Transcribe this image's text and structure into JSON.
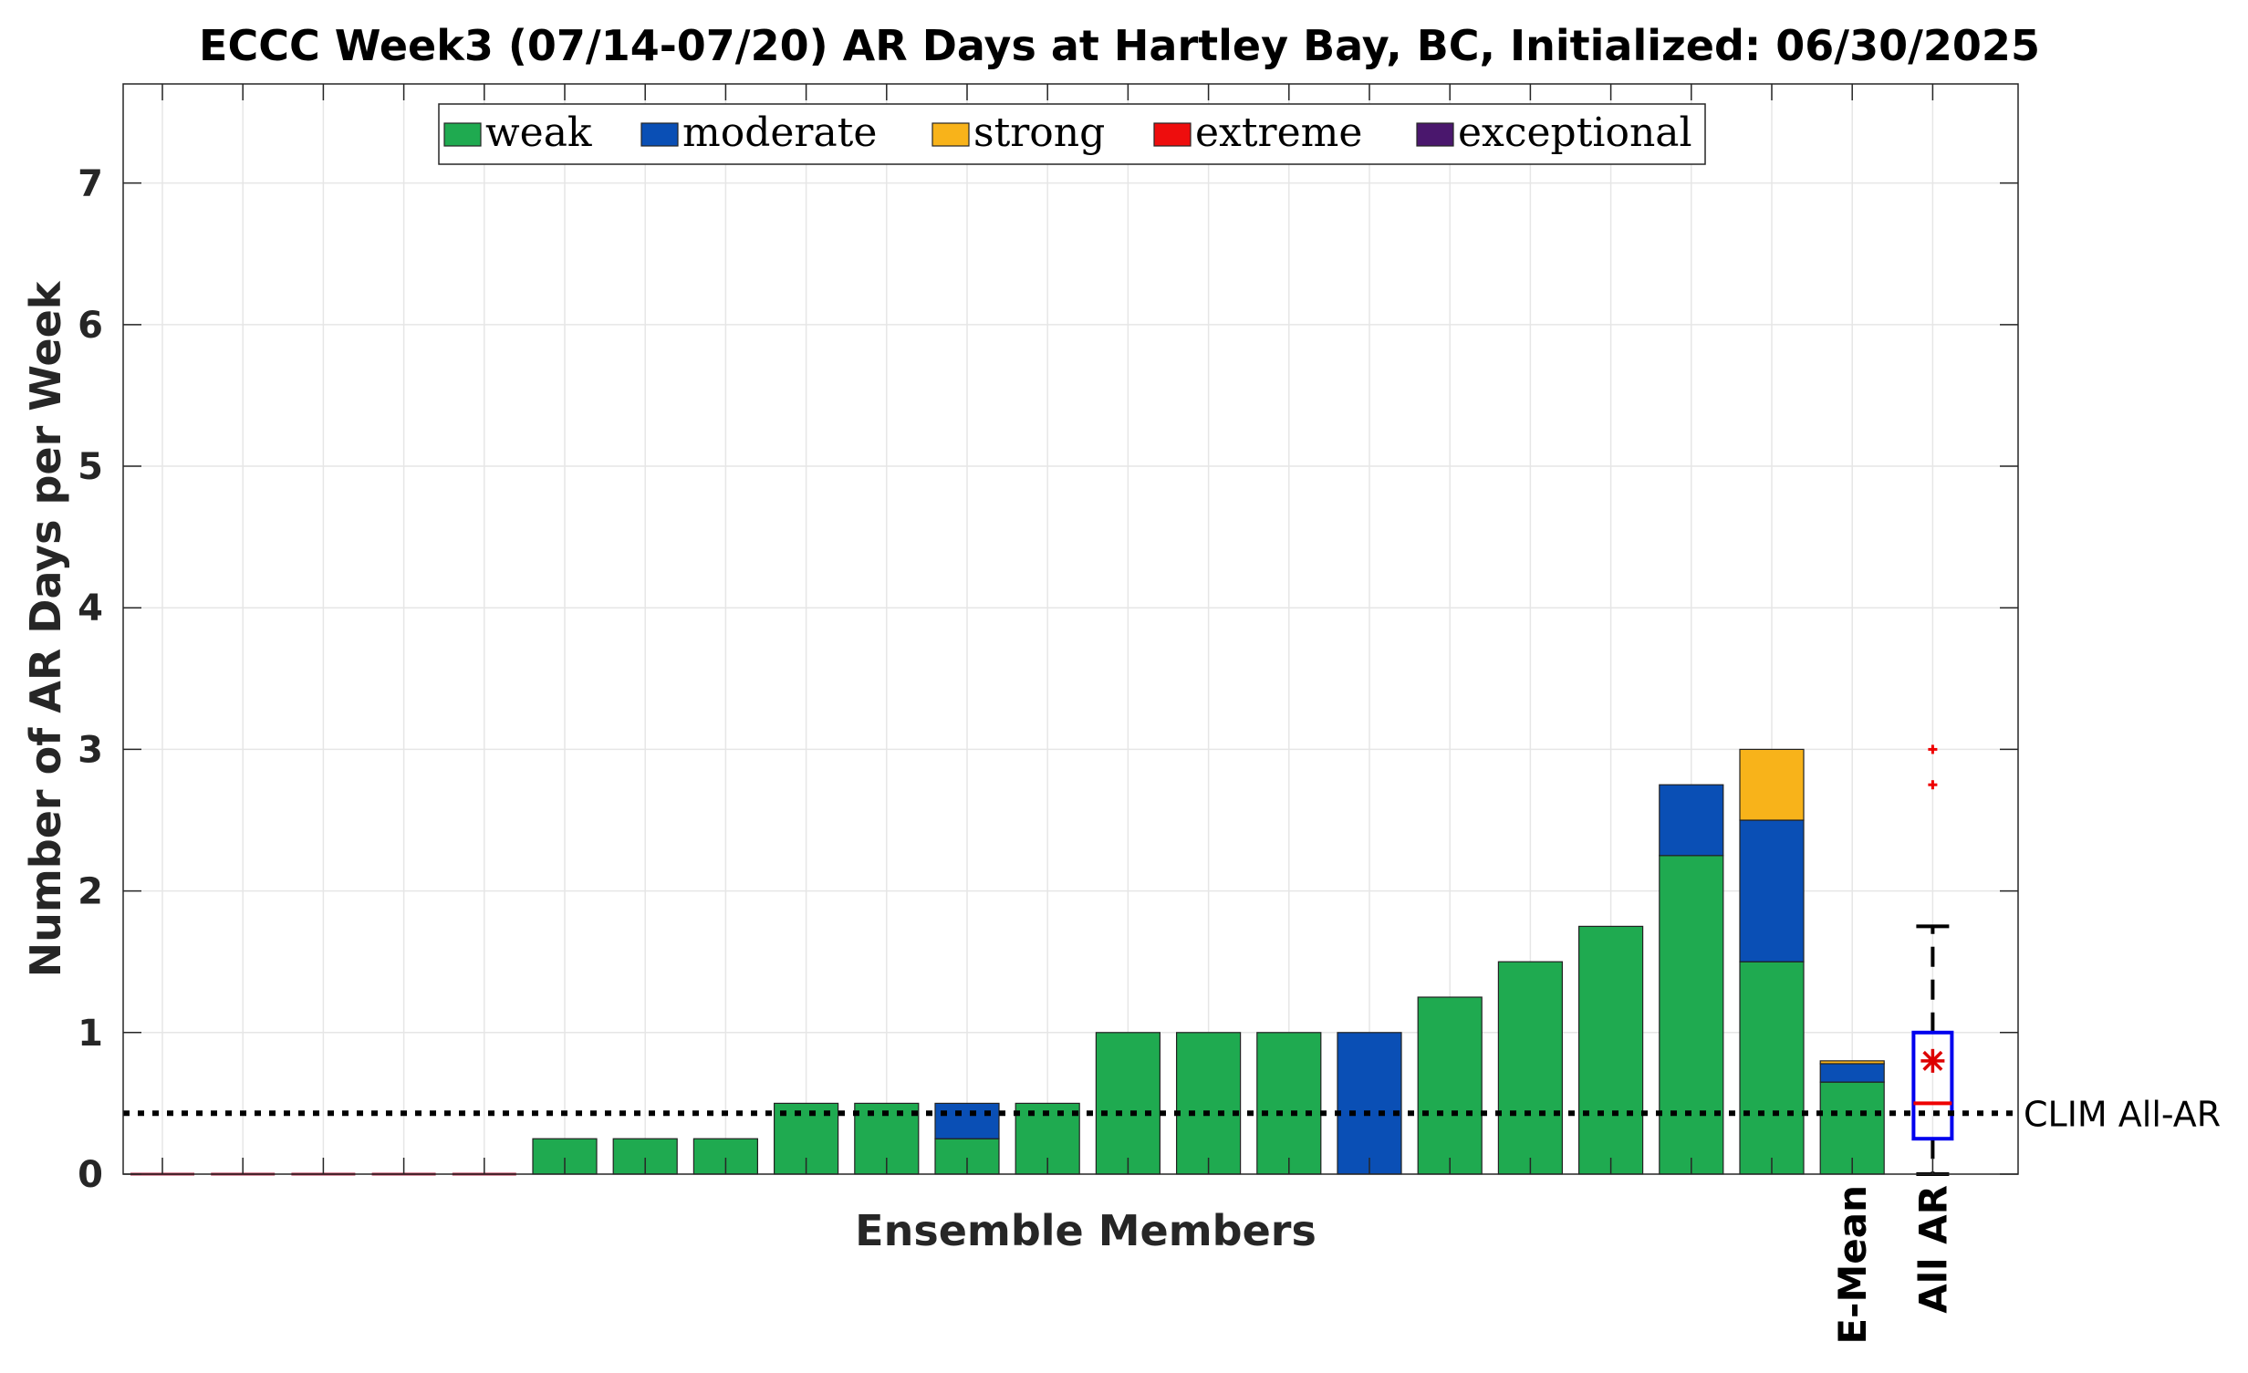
{
  "chart_data": {
    "type": "bar",
    "stacked": true,
    "title": "ECCC Week3 (07/14-07/20) AR Days at Hartley Bay, BC, Initialized: 06/30/2025",
    "xlabel": "Ensemble Members",
    "ylabel": "Number of AR Days per Week",
    "ylim": [
      0,
      7.7
    ],
    "yticks": [
      0,
      1,
      2,
      3,
      4,
      5,
      6,
      7
    ],
    "grid": true,
    "legend_position": "top",
    "series": [
      {
        "name": "weak",
        "color": "#1faa50",
        "values": [
          0,
          0,
          0,
          0,
          0,
          0.25,
          0.25,
          0.25,
          0.5,
          0.5,
          0.25,
          0.5,
          1,
          1,
          1,
          0,
          1.25,
          1.5,
          1.75,
          2.25,
          1.5,
          0.65
        ]
      },
      {
        "name": "moderate",
        "color": "#0a4fb5",
        "values": [
          0,
          0,
          0,
          0,
          0,
          0,
          0,
          0,
          0,
          0,
          0.25,
          0,
          0,
          0,
          0,
          1,
          0,
          0,
          0,
          0.5,
          1,
          0.13
        ]
      },
      {
        "name": "strong",
        "color": "#f8b31a",
        "values": [
          0,
          0,
          0,
          0,
          0,
          0,
          0,
          0,
          0,
          0,
          0,
          0,
          0,
          0,
          0,
          0,
          0,
          0,
          0,
          0,
          0.5,
          0.02
        ]
      },
      {
        "name": "extreme",
        "color": "#ee0d0d",
        "values": [
          0,
          0,
          0,
          0,
          0,
          0,
          0,
          0,
          0,
          0,
          0,
          0,
          0,
          0,
          0,
          0,
          0,
          0,
          0,
          0,
          0,
          0
        ]
      },
      {
        "name": "exceptional",
        "color": "#4a176d",
        "values": [
          0,
          0,
          0,
          0,
          0,
          0,
          0,
          0,
          0,
          0,
          0,
          0,
          0,
          0,
          0,
          0,
          0,
          0,
          0,
          0,
          0,
          0
        ]
      }
    ],
    "category_labels": [
      {
        "index": 21,
        "label": "E-Mean"
      },
      {
        "index": 22,
        "label": "All AR"
      }
    ],
    "boxplot": {
      "label": "All AR",
      "min": 0,
      "q1": 0.25,
      "median": 0.5,
      "q3": 1,
      "max": 1.75,
      "mean": 0.8,
      "outliers": [
        2.75,
        3
      ]
    },
    "reference_line": {
      "label": "CLIM All-AR",
      "value": 0.43
    }
  }
}
